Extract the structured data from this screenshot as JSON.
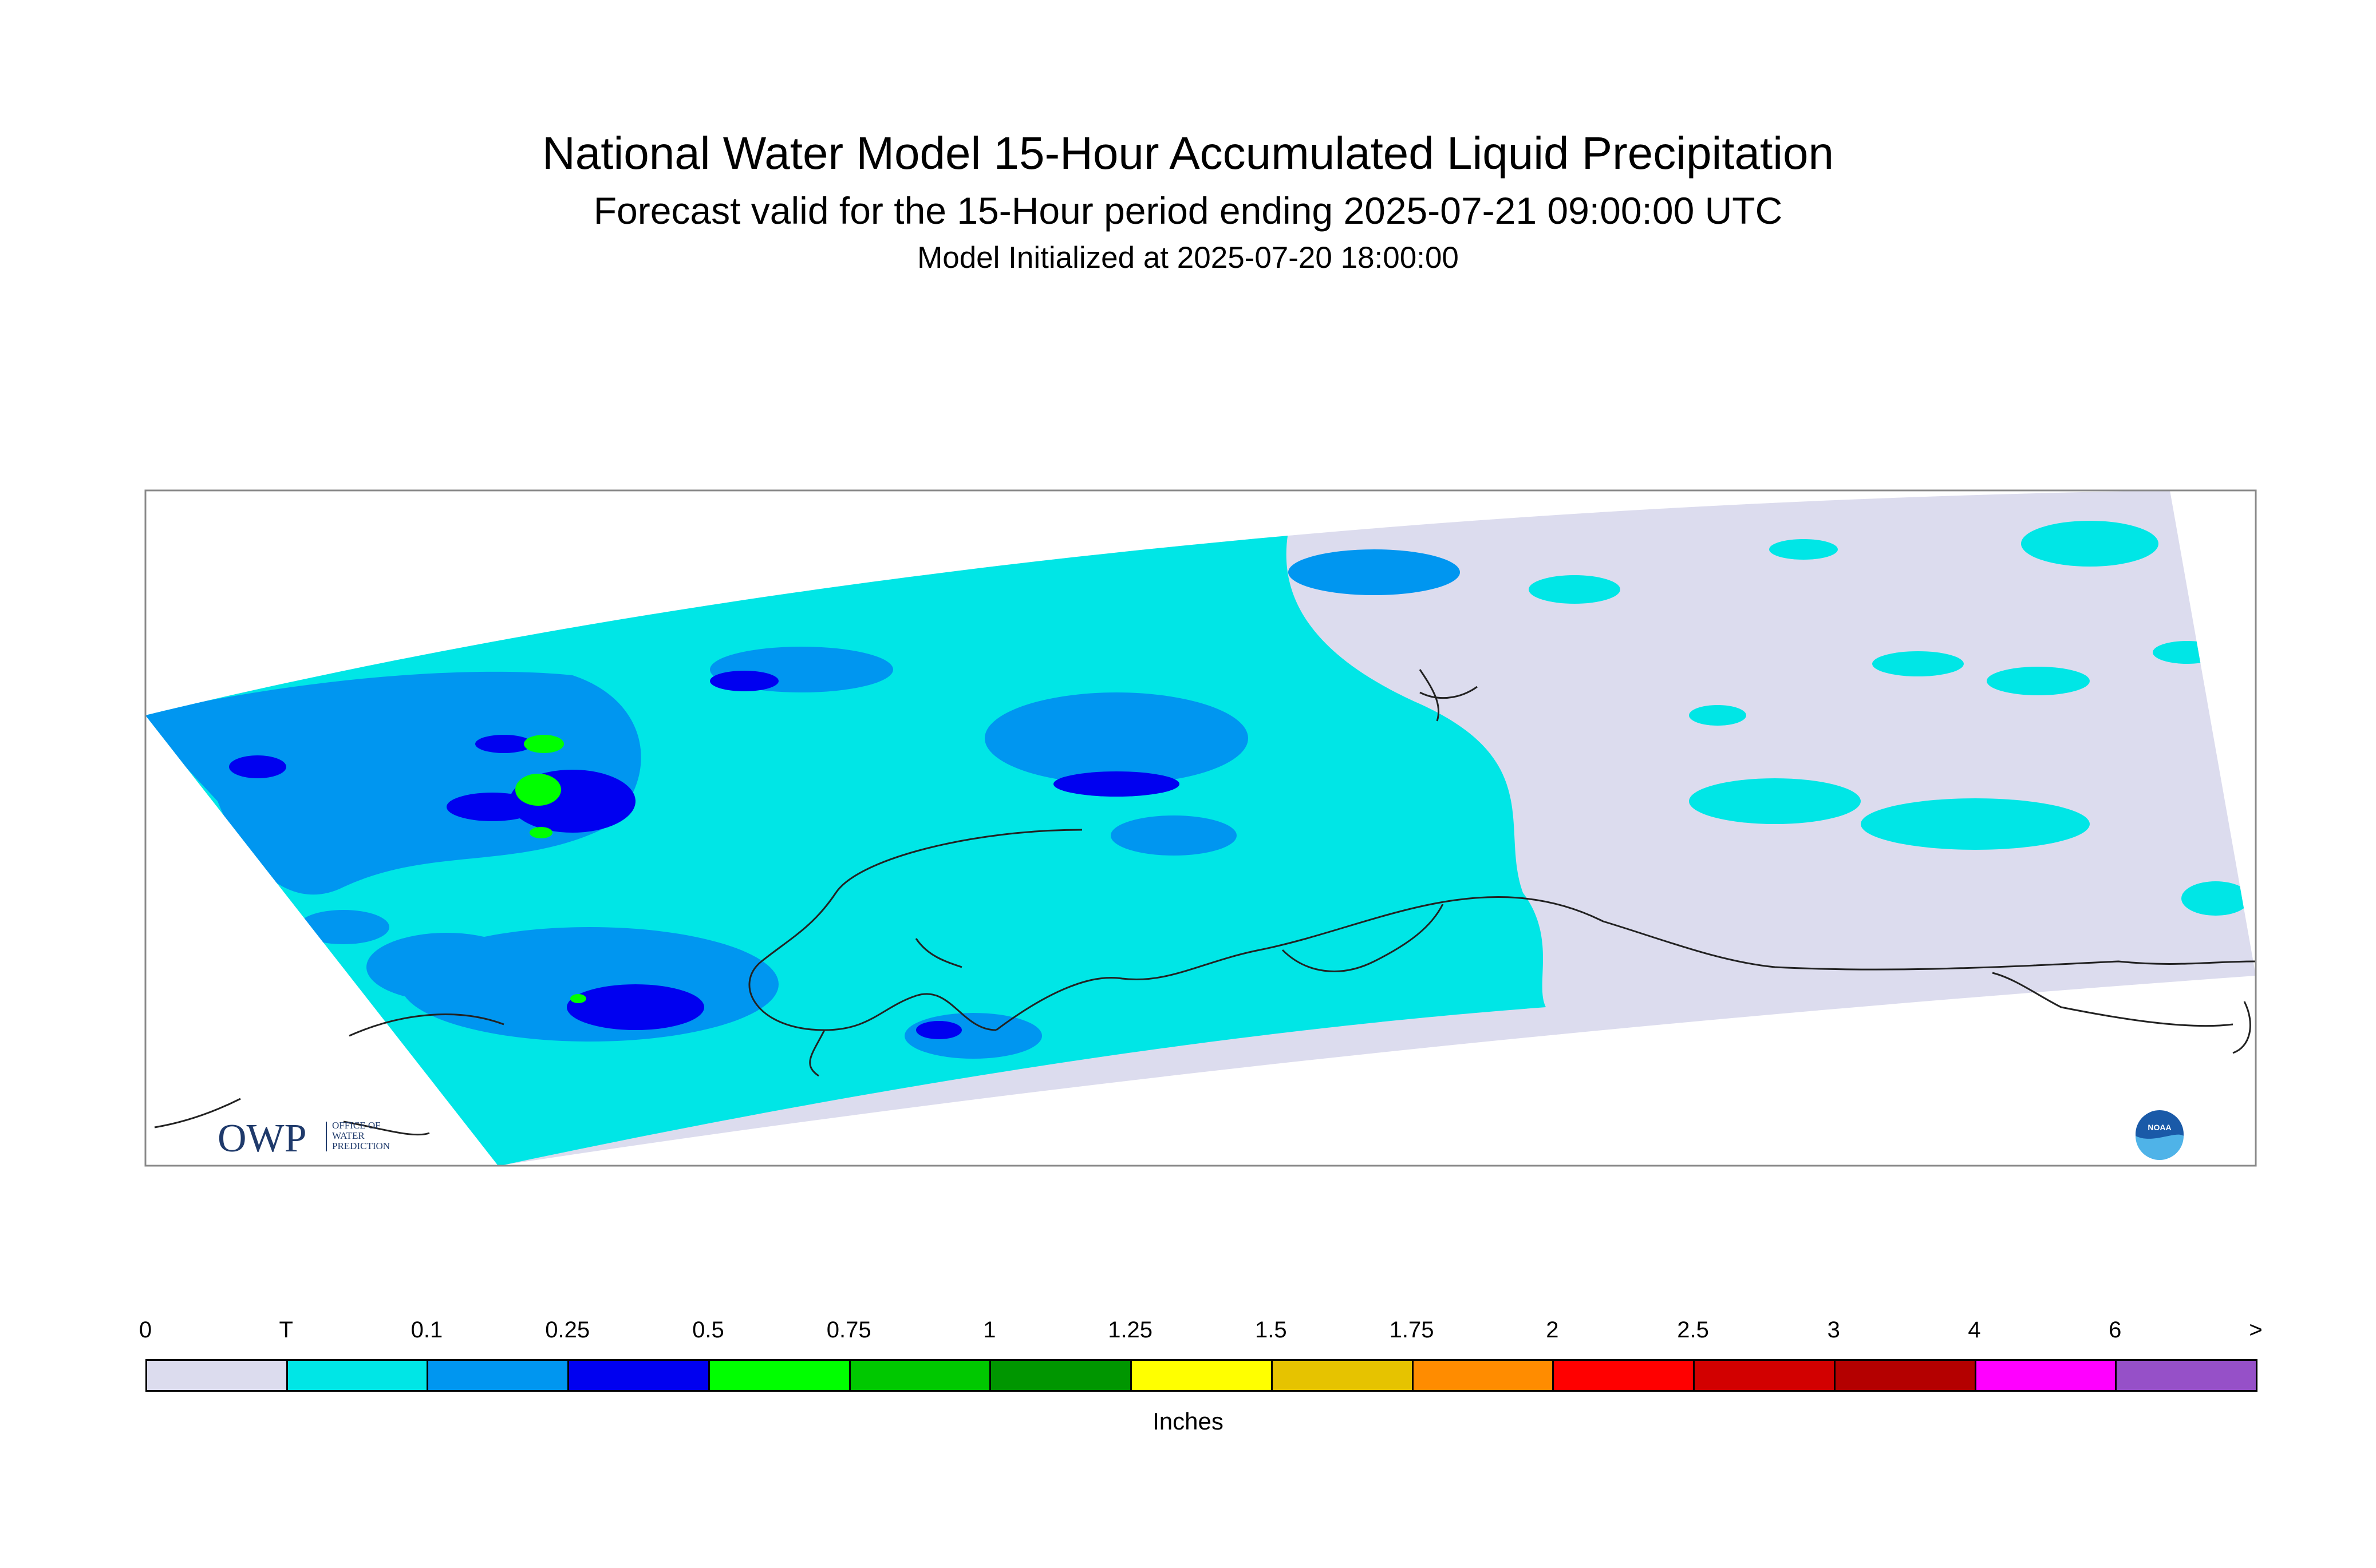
{
  "titles": {
    "line1": "National Water Model 15-Hour Accumulated Liquid Precipitation",
    "line2": "Forecast valid for the 15-Hour period ending 2025-07-21 09:00:00 UTC",
    "line3": "Model Initialized at 2025-07-20 18:00:00"
  },
  "logos": {
    "owp_text": "OWP",
    "owp_sub": [
      "OFFICE OF",
      "WATER",
      "PREDICTION"
    ],
    "noaa_text": "NOAA"
  },
  "legend": {
    "tick_labels": [
      "0",
      "T",
      "0.1",
      "0.25",
      "0.5",
      "0.75",
      "1",
      "1.25",
      "1.5",
      "1.75",
      "2",
      "2.5",
      "3",
      "4",
      "6",
      ">"
    ],
    "colors": [
      "#dcdcee",
      "#00e6e6",
      "#0096f0",
      "#0000f0",
      "#00ff00",
      "#00c800",
      "#009600",
      "#ffff00",
      "#e6c300",
      "#ff8c00",
      "#ff0000",
      "#d20000",
      "#b40000",
      "#ff00ff",
      "#9650c8"
    ],
    "units": "Inches"
  },
  "colors": {
    "no_precip": "#dcdcee",
    "trace": "#00e6e6",
    "light": "#0096f0",
    "moderate": "#0000f0",
    "heavy": "#00ff00",
    "coast": "#222222",
    "frame": "#888888"
  }
}
